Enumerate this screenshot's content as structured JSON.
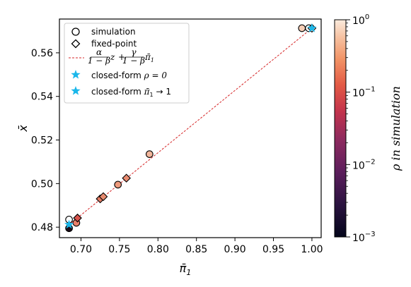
{
  "chart_data": {
    "type": "scatter",
    "xlabel": "π̄",
    "xlabel_sub": "1",
    "ylabel": "x̄",
    "xlim": [
      0.672,
      1.012
    ],
    "ylim": [
      0.4752,
      0.5755
    ],
    "xticks": [
      0.7,
      0.75,
      0.8,
      0.85,
      0.9,
      0.95,
      1.0
    ],
    "xtick_labels": [
      "0.70",
      "0.75",
      "0.80",
      "0.85",
      "0.90",
      "0.95",
      "1.00"
    ],
    "yticks": [
      0.48,
      0.5,
      0.52,
      0.54,
      0.56
    ],
    "ytick_labels": [
      "0.48",
      "0.50",
      "0.52",
      "0.54",
      "0.56"
    ],
    "grid": false,
    "legend_position": "top-left",
    "colorbar": {
      "label": "ρ in simulation",
      "scale": "log",
      "range": [
        0.001,
        1
      ],
      "tick_labels": [
        {
          "base": "10",
          "exp": "0"
        },
        {
          "base": "10",
          "exp": "−1"
        },
        {
          "base": "10",
          "exp": "−2"
        },
        {
          "base": "10",
          "exp": "−3"
        }
      ]
    },
    "series": [
      {
        "name": "simulation",
        "marker": "circle",
        "points": [
          {
            "x": 0.6845,
            "y": 0.4835,
            "color": "#ffffff"
          },
          {
            "x": 0.6845,
            "y": 0.4795,
            "color": "#1a0c18"
          },
          {
            "x": 0.694,
            "y": 0.482,
            "color": "#e8806a"
          },
          {
            "x": 0.748,
            "y": 0.4995,
            "color": "#ee9a7c"
          },
          {
            "x": 0.789,
            "y": 0.5135,
            "color": "#f2b69c"
          },
          {
            "x": 0.987,
            "y": 0.5713,
            "color": "#f6cdb5"
          },
          {
            "x": 0.996,
            "y": 0.5713,
            "color": "#ffffff"
          }
        ]
      },
      {
        "name": "fixed-point",
        "marker": "diamond",
        "points": [
          {
            "x": 0.6955,
            "y": 0.4842,
            "color": "#d8534c"
          },
          {
            "x": 0.725,
            "y": 0.493,
            "color": "#e47b63"
          },
          {
            "x": 0.729,
            "y": 0.494,
            "color": "#e68a6e"
          },
          {
            "x": 0.759,
            "y": 0.5025,
            "color": "#e98a6f"
          },
          {
            "x": 1.0,
            "y": 0.5713,
            "color": "#f9ddd0"
          }
        ]
      },
      {
        "name_parts": {
          "a1": "α",
          "d1": "1 − β",
          "v1": "z",
          "a2": "γ",
          "d2": "1 − β",
          "v2": "π̄",
          "v2sub": "1"
        },
        "type": "line",
        "style": "dashed",
        "color": "#d62728",
        "x": [
          0.684,
          1.0
        ],
        "y": [
          0.481,
          0.5713
        ]
      },
      {
        "name_prefix": "closed-form ",
        "name_math": "ρ = 0",
        "marker": "star",
        "color": "#1ab7ea",
        "points": [
          {
            "x": 0.6845,
            "y": 0.4812
          }
        ]
      },
      {
        "name_prefix": "closed-form ",
        "name_math": "π̄",
        "name_sub": "1",
        "name_suffix": " → 1",
        "marker": "star",
        "color": "#1ab7ea",
        "points": [
          {
            "x": 1.0,
            "y": 0.5713
          }
        ]
      }
    ]
  }
}
